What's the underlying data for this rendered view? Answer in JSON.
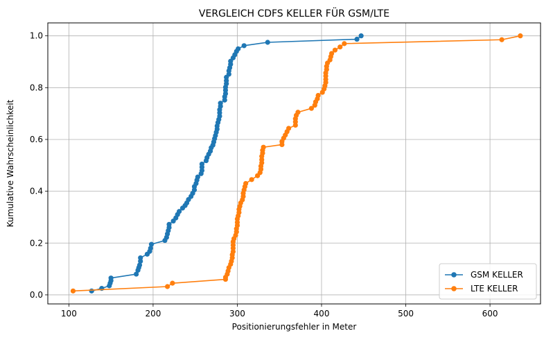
{
  "chart_data": {
    "type": "line",
    "title": "VERGLEICH CDFS KELLER FÜR GSM/LTE",
    "xlabel": "Positionierungsfehler in Meter",
    "ylabel": "Kumulative Wahrscheinlichkeit",
    "xlim": [
      75,
      660
    ],
    "ylim": [
      -0.035,
      1.05
    ],
    "xticks": [
      100,
      200,
      300,
      400,
      500,
      600
    ],
    "yticks": [
      0.0,
      0.2,
      0.4,
      0.6,
      0.8,
      1.0
    ],
    "xtick_labels": [
      "100",
      "200",
      "300",
      "400",
      "500",
      "600"
    ],
    "ytick_labels": [
      "0.0",
      "0.2",
      "0.4",
      "0.6",
      "0.8",
      "1.0"
    ],
    "grid": true,
    "legend_position": "bottom-right",
    "series": [
      {
        "name": "GSM KELLER",
        "color": "#1f77b4",
        "marker": "circle",
        "points": [
          [
            127,
            0.015
          ],
          [
            139,
            0.025
          ],
          [
            148,
            0.035
          ],
          [
            149,
            0.045
          ],
          [
            150,
            0.055
          ],
          [
            150,
            0.065
          ],
          [
            180,
            0.08
          ],
          [
            182,
            0.095
          ],
          [
            183,
            0.105
          ],
          [
            184,
            0.115
          ],
          [
            185,
            0.13
          ],
          [
            185,
            0.143
          ],
          [
            193,
            0.157
          ],
          [
            196,
            0.168
          ],
          [
            197,
            0.18
          ],
          [
            198,
            0.195
          ],
          [
            214,
            0.21
          ],
          [
            216,
            0.222
          ],
          [
            217,
            0.235
          ],
          [
            218,
            0.248
          ],
          [
            219,
            0.26
          ],
          [
            219,
            0.272
          ],
          [
            224,
            0.285
          ],
          [
            227,
            0.297
          ],
          [
            229,
            0.31
          ],
          [
            231,
            0.322
          ],
          [
            235,
            0.335
          ],
          [
            238,
            0.345
          ],
          [
            240,
            0.355
          ],
          [
            242,
            0.368
          ],
          [
            245,
            0.38
          ],
          [
            247,
            0.392
          ],
          [
            249,
            0.405
          ],
          [
            249,
            0.418
          ],
          [
            251,
            0.43
          ],
          [
            252,
            0.443
          ],
          [
            253,
            0.455
          ],
          [
            257,
            0.468
          ],
          [
            258,
            0.48
          ],
          [
            258,
            0.493
          ],
          [
            258,
            0.505
          ],
          [
            263,
            0.518
          ],
          [
            264,
            0.53
          ],
          [
            266,
            0.543
          ],
          [
            268,
            0.555
          ],
          [
            269,
            0.568
          ],
          [
            271,
            0.578
          ],
          [
            272,
            0.59
          ],
          [
            273,
            0.603
          ],
          [
            274,
            0.615
          ],
          [
            275,
            0.628
          ],
          [
            276,
            0.64
          ],
          [
            276,
            0.652
          ],
          [
            277,
            0.665
          ],
          [
            278,
            0.677
          ],
          [
            279,
            0.69
          ],
          [
            279,
            0.703
          ],
          [
            279,
            0.715
          ],
          [
            280,
            0.728
          ],
          [
            280,
            0.74
          ],
          [
            285,
            0.752
          ],
          [
            285,
            0.765
          ],
          [
            286,
            0.777
          ],
          [
            286,
            0.79
          ],
          [
            286,
            0.802
          ],
          [
            287,
            0.815
          ],
          [
            287,
            0.827
          ],
          [
            287,
            0.84
          ],
          [
            290,
            0.852
          ],
          [
            290,
            0.865
          ],
          [
            291,
            0.877
          ],
          [
            292,
            0.89
          ],
          [
            292,
            0.902
          ],
          [
            295,
            0.915
          ],
          [
            297,
            0.927
          ],
          [
            299,
            0.94
          ],
          [
            301,
            0.95
          ],
          [
            308,
            0.962
          ],
          [
            336,
            0.975
          ],
          [
            442,
            0.987
          ],
          [
            447,
            1.0
          ]
        ]
      },
      {
        "name": "LTE KELLER",
        "color": "#ff7f0e",
        "marker": "circle",
        "points": [
          [
            105,
            0.015
          ],
          [
            217,
            0.032
          ],
          [
            223,
            0.045
          ],
          [
            286,
            0.06
          ],
          [
            286,
            0.068
          ],
          [
            288,
            0.08
          ],
          [
            289,
            0.092
          ],
          [
            290,
            0.105
          ],
          [
            292,
            0.118
          ],
          [
            293,
            0.13
          ],
          [
            294,
            0.143
          ],
          [
            294,
            0.155
          ],
          [
            295,
            0.167
          ],
          [
            295,
            0.18
          ],
          [
            295,
            0.192
          ],
          [
            295,
            0.205
          ],
          [
            296,
            0.217
          ],
          [
            298,
            0.23
          ],
          [
            299,
            0.243
          ],
          [
            299,
            0.255
          ],
          [
            300,
            0.268
          ],
          [
            300,
            0.28
          ],
          [
            300,
            0.293
          ],
          [
            301,
            0.305
          ],
          [
            302,
            0.318
          ],
          [
            302,
            0.33
          ],
          [
            303,
            0.342
          ],
          [
            304,
            0.355
          ],
          [
            306,
            0.367
          ],
          [
            307,
            0.38
          ],
          [
            307,
            0.392
          ],
          [
            308,
            0.405
          ],
          [
            309,
            0.418
          ],
          [
            310,
            0.43
          ],
          [
            317,
            0.445
          ],
          [
            324,
            0.46
          ],
          [
            327,
            0.472
          ],
          [
            328,
            0.485
          ],
          [
            328,
            0.497
          ],
          [
            329,
            0.51
          ],
          [
            329,
            0.522
          ],
          [
            329,
            0.535
          ],
          [
            330,
            0.547
          ],
          [
            330,
            0.558
          ],
          [
            331,
            0.57
          ],
          [
            353,
            0.58
          ],
          [
            353,
            0.592
          ],
          [
            355,
            0.605
          ],
          [
            357,
            0.617
          ],
          [
            359,
            0.63
          ],
          [
            361,
            0.643
          ],
          [
            369,
            0.655
          ],
          [
            369,
            0.668
          ],
          [
            369,
            0.68
          ],
          [
            370,
            0.693
          ],
          [
            372,
            0.705
          ],
          [
            388,
            0.72
          ],
          [
            392,
            0.732
          ],
          [
            393,
            0.745
          ],
          [
            395,
            0.757
          ],
          [
            396,
            0.77
          ],
          [
            401,
            0.782
          ],
          [
            403,
            0.795
          ],
          [
            404,
            0.807
          ],
          [
            405,
            0.82
          ],
          [
            405,
            0.832
          ],
          [
            405,
            0.845
          ],
          [
            405,
            0.857
          ],
          [
            406,
            0.87
          ],
          [
            406,
            0.882
          ],
          [
            407,
            0.895
          ],
          [
            410,
            0.907
          ],
          [
            411,
            0.92
          ],
          [
            412,
            0.932
          ],
          [
            416,
            0.945
          ],
          [
            422,
            0.957
          ],
          [
            427,
            0.97
          ],
          [
            614,
            0.985
          ],
          [
            636,
            1.0
          ]
        ]
      }
    ]
  }
}
